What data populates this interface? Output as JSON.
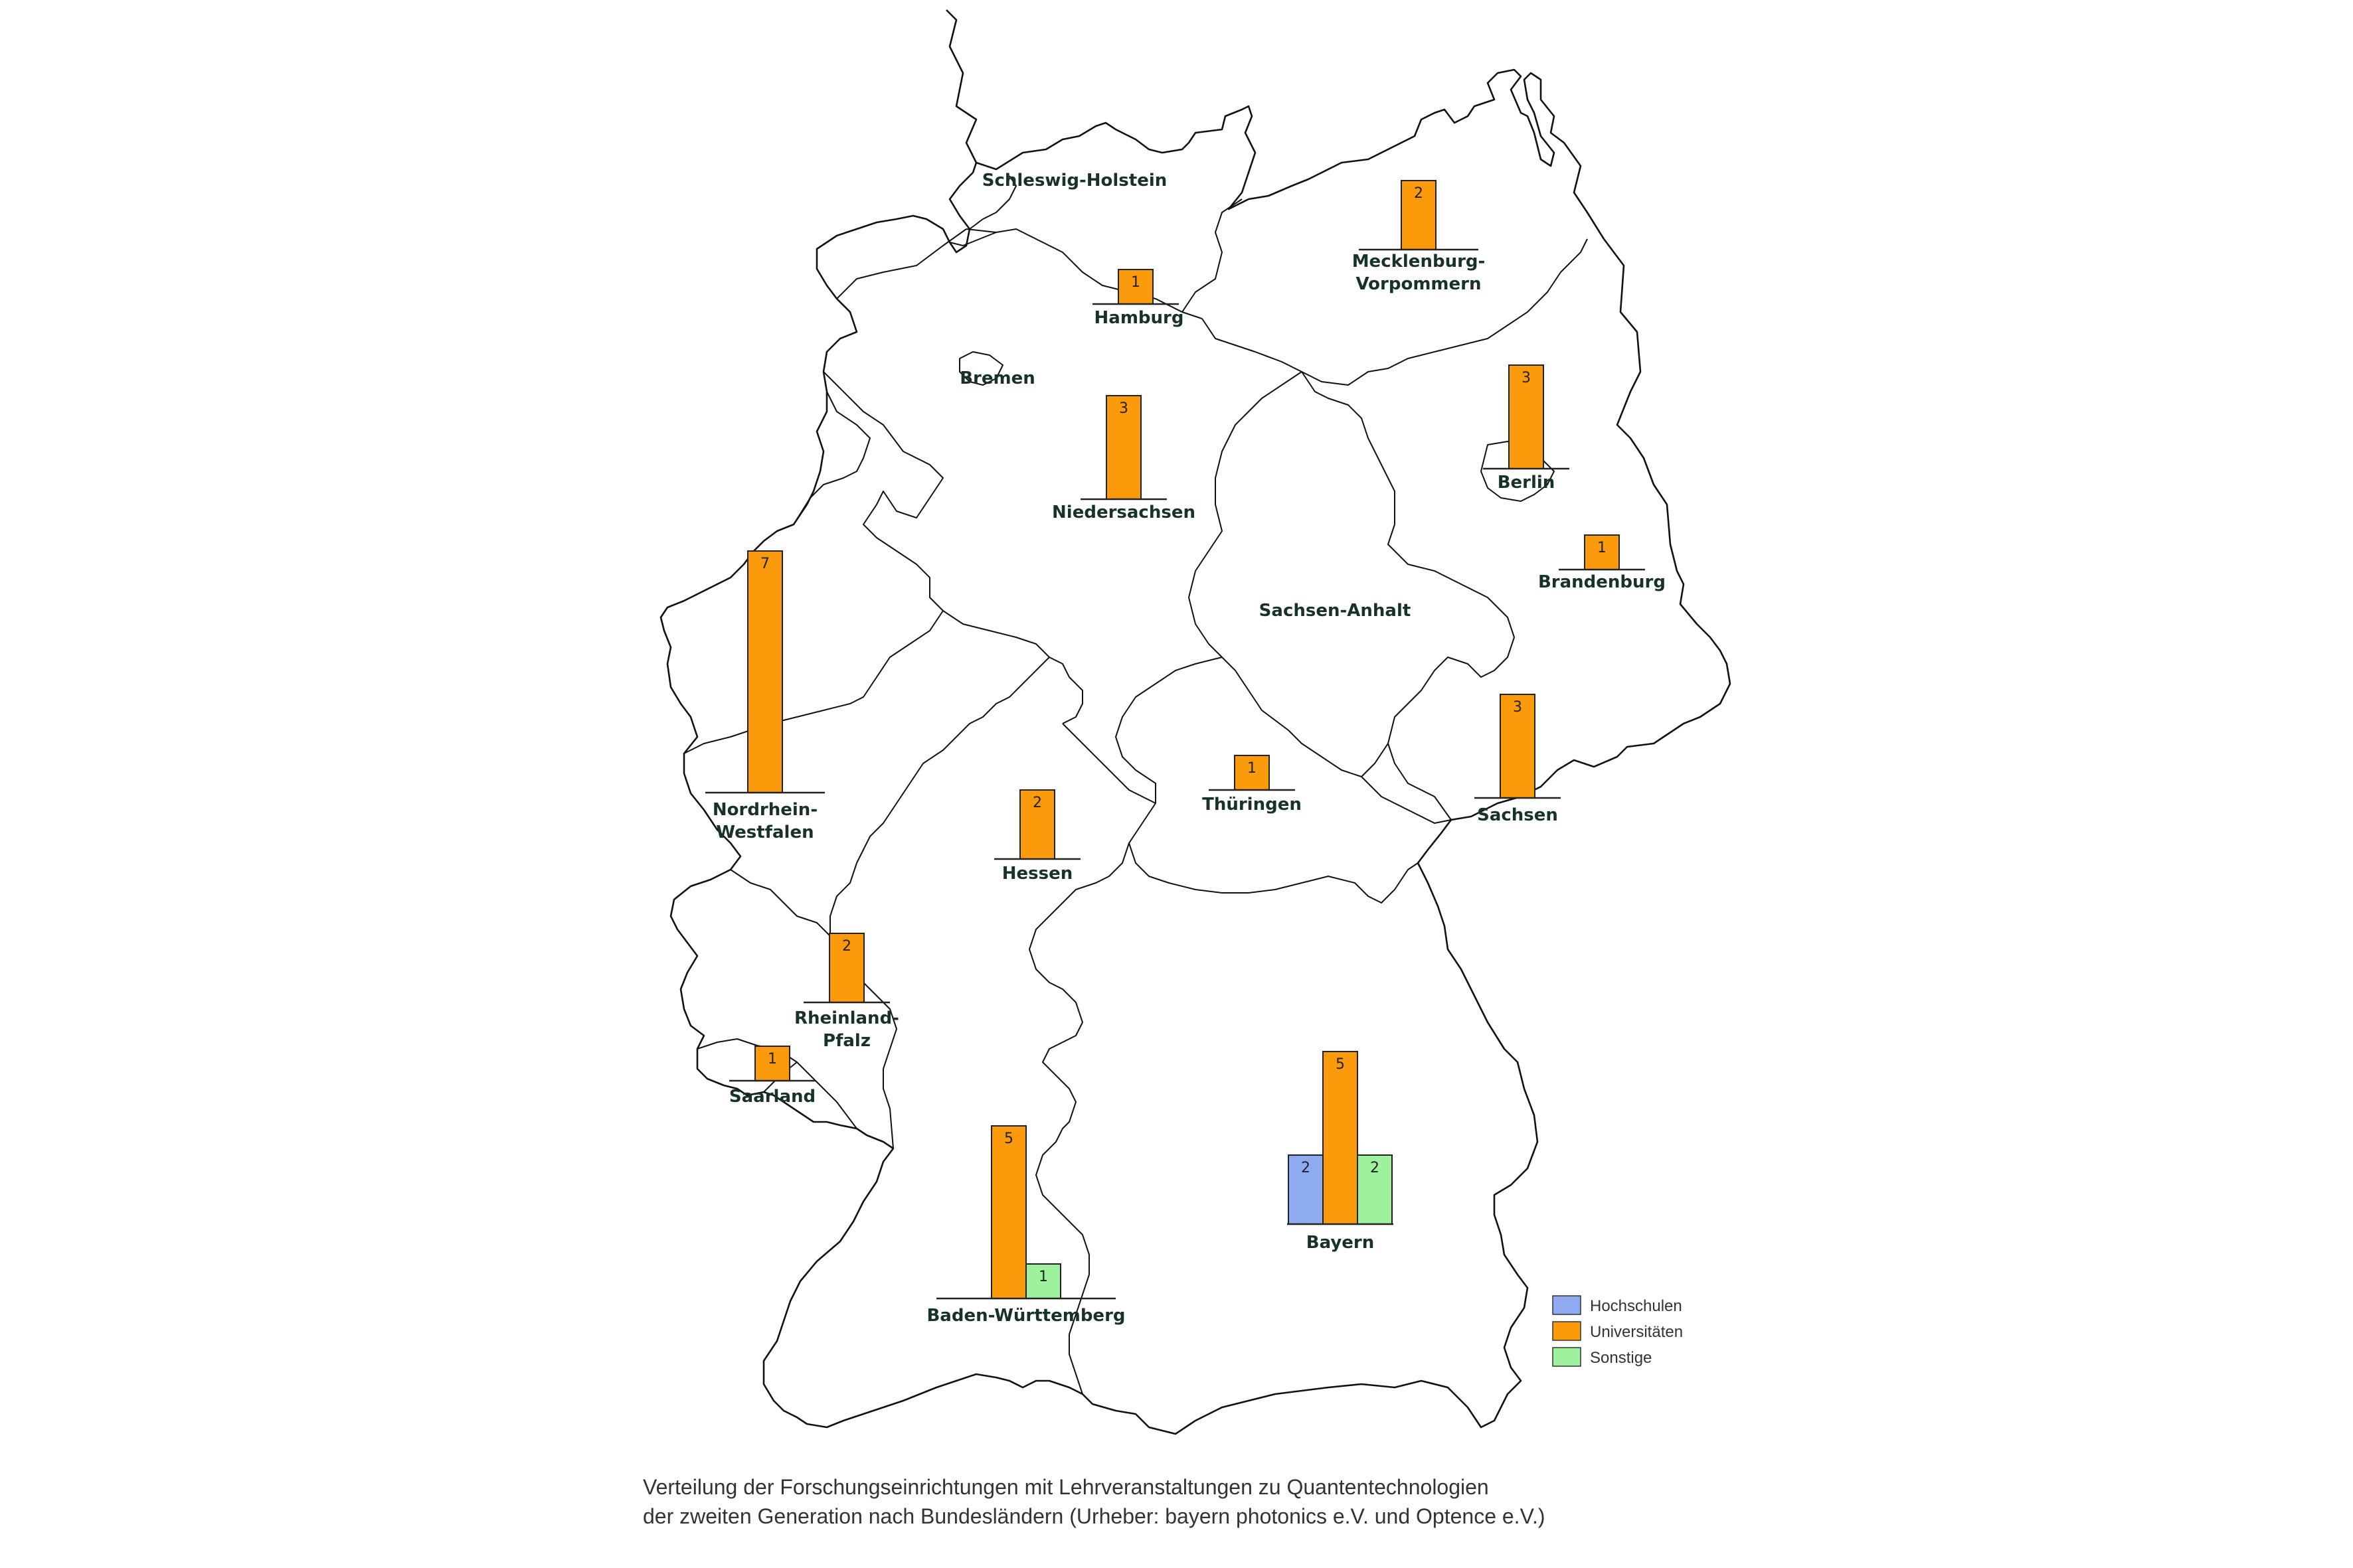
{
  "legend": [
    {
      "label": "Hochschulen",
      "color": "#8eaaf0"
    },
    {
      "label": "Universitäten",
      "color": "#fb9a0a"
    },
    {
      "label": "Sonstige",
      "color": "#9ef29e"
    }
  ],
  "states": [
    {
      "name": "Schleswig-Holstein",
      "values": []
    },
    {
      "name": "Hamburg",
      "values": [
        0,
        1,
        0
      ]
    },
    {
      "name": "Mecklenburg-Vorpommern",
      "values": [
        0,
        2,
        0
      ]
    },
    {
      "name": "Bremen",
      "values": []
    },
    {
      "name": "Niedersachsen",
      "values": [
        0,
        3,
        0
      ]
    },
    {
      "name": "Berlin",
      "values": [
        0,
        3,
        0
      ]
    },
    {
      "name": "Brandenburg",
      "values": [
        0,
        1,
        0
      ]
    },
    {
      "name": "Sachsen-Anhalt",
      "values": []
    },
    {
      "name": "Nordrhein-Westfalen",
      "values": [
        0,
        7,
        0
      ]
    },
    {
      "name": "Sachsen",
      "values": [
        0,
        3,
        0
      ]
    },
    {
      "name": "Thüringen",
      "values": [
        0,
        1,
        0
      ]
    },
    {
      "name": "Hessen",
      "values": [
        0,
        2,
        0
      ]
    },
    {
      "name": "Rheinland-Pfalz",
      "values": [
        0,
        2,
        0
      ]
    },
    {
      "name": "Saarland",
      "values": [
        0,
        1,
        0
      ]
    },
    {
      "name": "Bayern",
      "values": [
        2,
        5,
        2
      ]
    },
    {
      "name": "Baden-Württemberg",
      "values": [
        0,
        5,
        1
      ]
    }
  ],
  "caption": {
    "line1": "Verteilung der Forschungseinrichtungen mit Lehrveranstaltungen zu Quantentechnologien",
    "line2": "der zweiten Generation nach Bundesländern (Urheber: bayern photonics e.V. und Optence e.V.)"
  }
}
